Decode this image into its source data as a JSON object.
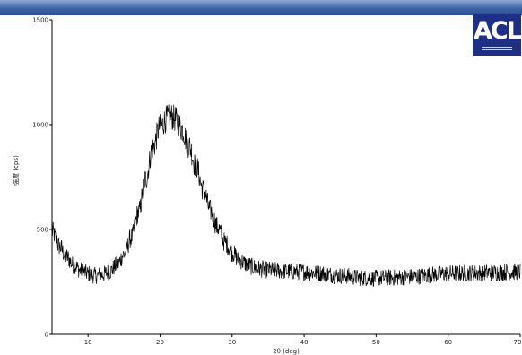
{
  "chart_data": {
    "type": "line",
    "title": "",
    "xlabel": "2θ (deg)",
    "ylabel": "強度 (cps)",
    "xlim": [
      5,
      70
    ],
    "ylim": [
      0,
      1500
    ],
    "x_ticks": [
      10,
      20,
      30,
      40,
      50,
      60,
      70
    ],
    "y_ticks": [
      0,
      500,
      1000,
      1500
    ],
    "x_tick_labels": [
      "10",
      "20",
      "30",
      "40",
      "50",
      "60",
      "70"
    ],
    "y_tick_labels": [
      "0",
      "500",
      "1000",
      "1500"
    ],
    "grid": false,
    "series": [
      {
        "color": "#000000",
        "x": [
          5,
          6,
          7,
          8,
          9,
          10,
          11,
          12,
          13,
          14,
          15,
          16,
          17,
          18,
          19,
          20,
          21,
          21.5,
          22,
          22.5,
          23,
          24,
          25,
          26,
          27,
          28,
          29,
          30,
          31,
          32,
          33,
          34,
          35,
          36,
          37,
          38,
          40,
          42,
          45,
          48,
          50,
          52,
          55,
          58,
          60,
          63,
          66,
          68,
          70
        ],
        "y": [
          490,
          420,
          370,
          330,
          305,
          290,
          280,
          285,
          300,
          330,
          380,
          460,
          580,
          740,
          890,
          990,
          1030,
          1040,
          1030,
          1010,
          980,
          900,
          800,
          690,
          590,
          510,
          440,
          390,
          355,
          335,
          320,
          312,
          307,
          305,
          302,
          300,
          298,
          292,
          280,
          270,
          268,
          270,
          275,
          285,
          290,
          292,
          295,
          297,
          298
        ]
      }
    ]
  },
  "header": {
    "band_color": "#3f63a8"
  },
  "logo": {
    "text": "ACL",
    "color": "#1f2f86"
  }
}
